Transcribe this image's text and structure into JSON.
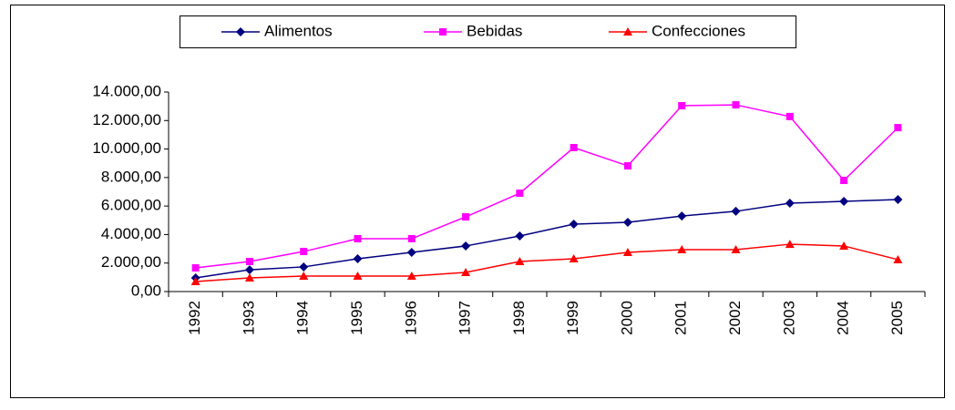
{
  "chart_data": {
    "type": "line",
    "categories": [
      "1992",
      "1993",
      "1994",
      "1995",
      "1996",
      "1997",
      "1998",
      "1999",
      "2000",
      "2001",
      "2002",
      "2003",
      "2004",
      "2005"
    ],
    "series": [
      {
        "name": "Alimentos",
        "color": "#000080",
        "marker": "diamond",
        "values": [
          960,
          1530,
          1730,
          2300,
          2750,
          3200,
          3900,
          4730,
          4860,
          5300,
          5630,
          6200,
          6330,
          6460
        ]
      },
      {
        "name": "Bebidas",
        "color": "#ff00ff",
        "marker": "square",
        "values": [
          1660,
          2110,
          2810,
          3710,
          3710,
          5240,
          6900,
          10100,
          8820,
          13040,
          13100,
          12280,
          7800,
          11500
        ]
      },
      {
        "name": "Confecciones",
        "color": "#ff0000",
        "marker": "triangle",
        "values": [
          700,
          960,
          1090,
          1090,
          1090,
          1340,
          2110,
          2300,
          2750,
          2940,
          2940,
          3320,
          3200,
          2240
        ]
      }
    ],
    "ylim": [
      0,
      14000
    ],
    "yticks": [
      {
        "value": 0,
        "label": "0,00"
      },
      {
        "value": 2000,
        "label": "2.000,00"
      },
      {
        "value": 4000,
        "label": "4.000,00"
      },
      {
        "value": 6000,
        "label": "6.000,00"
      },
      {
        "value": 8000,
        "label": "8.000,00"
      },
      {
        "value": 10000,
        "label": "10.000,00"
      },
      {
        "value": 12000,
        "label": "12.000,00"
      },
      {
        "value": 14000,
        "label": "14.000,00"
      }
    ],
    "grid": false,
    "legend": "top"
  }
}
